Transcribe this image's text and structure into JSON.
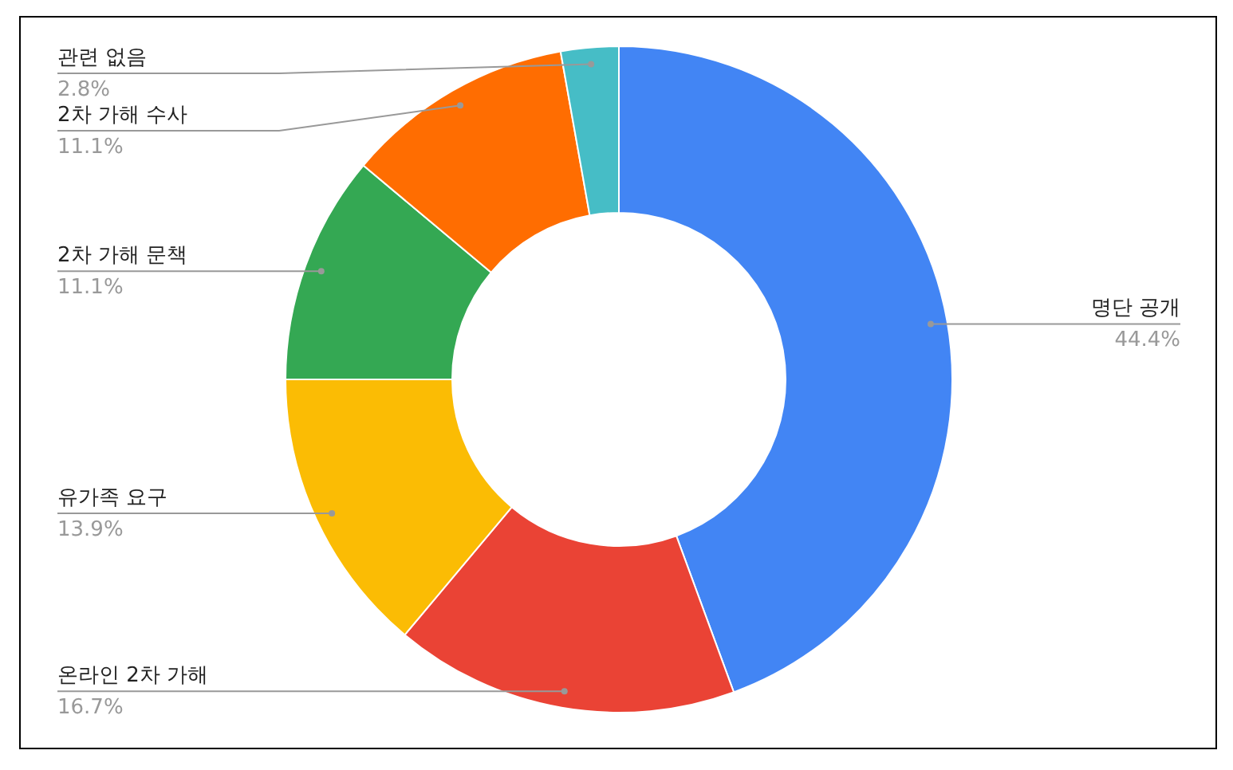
{
  "chart_data": {
    "type": "donut",
    "categories": [
      "명단 공개",
      "온라인 2차 가해",
      "유가족 요구",
      "2차 가해 문책",
      "2차 가해 수사",
      "관련 없음"
    ],
    "values": [
      44.4,
      16.7,
      13.9,
      11.1,
      11.1,
      2.8
    ],
    "colors": [
      "#4285f4",
      "#ea4335",
      "#fbbc04",
      "#34a853",
      "#ff6d01",
      "#46bdc6"
    ],
    "value_labels": [
      "44.4%",
      "16.7%",
      "13.9%",
      "11.1%",
      "11.1%",
      "2.8%"
    ]
  }
}
